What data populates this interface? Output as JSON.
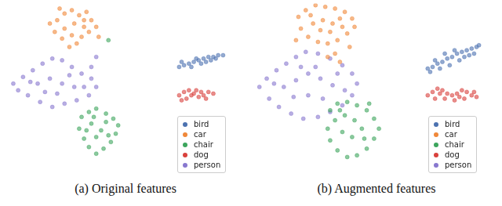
{
  "chart_data": [
    {
      "type": "scatter",
      "caption": "(a) Original features",
      "xlim": [
        0,
        100
      ],
      "ylim": [
        0,
        100
      ],
      "tick_labels": false,
      "grid": false,
      "legend": "lower right",
      "series": [
        {
          "name": "bird",
          "color": "#4c72b0",
          "marker": "circle",
          "points": [
            [
              72,
              62
            ],
            [
              74,
              63
            ],
            [
              76,
              64
            ],
            [
              78,
              65
            ],
            [
              80,
              66
            ],
            [
              82,
              67
            ],
            [
              84,
              68
            ],
            [
              86,
              68
            ],
            [
              88,
              69
            ],
            [
              90,
              69
            ],
            [
              77,
              62
            ],
            [
              81,
              64
            ],
            [
              85,
              66
            ],
            [
              79,
              67
            ],
            [
              83,
              65
            ],
            [
              87,
              67
            ],
            [
              73,
              65
            ]
          ]
        },
        {
          "name": "car",
          "color": "#f0883a",
          "marker": "circle",
          "points": [
            [
              22,
              90
            ],
            [
              25,
              94
            ],
            [
              28,
              96
            ],
            [
              31,
              93
            ],
            [
              34,
              95
            ],
            [
              36,
              90
            ],
            [
              33,
              86
            ],
            [
              29,
              88
            ],
            [
              25,
              85
            ],
            [
              21,
              83
            ],
            [
              24,
              79
            ],
            [
              28,
              81
            ],
            [
              32,
              80
            ],
            [
              35,
              83
            ],
            [
              38,
              86
            ],
            [
              30,
              76
            ],
            [
              27,
              74
            ],
            [
              19,
              88
            ],
            [
              23,
              97
            ],
            [
              33,
              90
            ],
            [
              39,
              80
            ]
          ]
        },
        {
          "name": "chair",
          "color": "#3da55d",
          "marker": "circle",
          "points": [
            [
              32,
              32
            ],
            [
              35,
              35
            ],
            [
              38,
              37
            ],
            [
              42,
              34
            ],
            [
              45,
              31
            ],
            [
              47,
              27
            ],
            [
              46,
              22
            ],
            [
              44,
              17
            ],
            [
              41,
              13
            ],
            [
              38,
              10
            ],
            [
              35,
              14
            ],
            [
              33,
              19
            ],
            [
              31,
              25
            ],
            [
              36,
              28
            ],
            [
              40,
              24
            ],
            [
              42,
              29
            ],
            [
              38,
              20
            ],
            [
              43,
              21
            ],
            [
              37,
              32
            ],
            [
              34,
              24
            ],
            [
              43,
              78
            ]
          ]
        },
        {
          "name": "dog",
          "color": "#d9413d",
          "marker": "circle",
          "points": [
            [
              72,
              45
            ],
            [
              74,
              47
            ],
            [
              76,
              48
            ],
            [
              78,
              46
            ],
            [
              80,
              44
            ],
            [
              82,
              45
            ],
            [
              84,
              47
            ],
            [
              86,
              46
            ],
            [
              75,
              43
            ],
            [
              79,
              48
            ],
            [
              83,
              43
            ],
            [
              77,
              45
            ],
            [
              81,
              47
            ],
            [
              73,
              42
            ]
          ]
        },
        {
          "name": "person",
          "color": "#8878cf",
          "marker": "circle",
          "points": [
            [
              4,
              52
            ],
            [
              8,
              56
            ],
            [
              12,
              60
            ],
            [
              16,
              64
            ],
            [
              20,
              67
            ],
            [
              24,
              66
            ],
            [
              28,
              62
            ],
            [
              32,
              58
            ],
            [
              36,
              55
            ],
            [
              38,
              50
            ],
            [
              35,
              45
            ],
            [
              30,
              42
            ],
            [
              25,
              40
            ],
            [
              20,
              38
            ],
            [
              15,
              41
            ],
            [
              10,
              45
            ],
            [
              6,
              48
            ],
            [
              14,
              52
            ],
            [
              19,
              55
            ],
            [
              24,
              52
            ],
            [
              29,
              50
            ],
            [
              33,
              50
            ],
            [
              22,
              46
            ],
            [
              17,
              47
            ],
            [
              27,
              57
            ],
            [
              11,
              53
            ],
            [
              38,
              68
            ],
            [
              36,
              62
            ]
          ]
        }
      ]
    },
    {
      "type": "scatter",
      "caption": "(b) Augmented features",
      "xlim": [
        0,
        100
      ],
      "ylim": [
        0,
        100
      ],
      "tick_labels": false,
      "grid": false,
      "legend": "lower right",
      "series": [
        {
          "name": "bird",
          "color": "#4c72b0",
          "marker": "circle",
          "points": [
            [
              71,
              61
            ],
            [
              73,
              62
            ],
            [
              75,
              64
            ],
            [
              77,
              65
            ],
            [
              79,
              67
            ],
            [
              81,
              68
            ],
            [
              83,
              70
            ],
            [
              85,
              71
            ],
            [
              87,
              72
            ],
            [
              89,
              73
            ],
            [
              91,
              74
            ],
            [
              76,
              61
            ],
            [
              80,
              63
            ],
            [
              84,
              66
            ],
            [
              88,
              69
            ],
            [
              78,
              70
            ],
            [
              82,
              72
            ],
            [
              86,
              68
            ],
            [
              90,
              70
            ],
            [
              74,
              66
            ],
            [
              72,
              59
            ],
            [
              92,
              75
            ]
          ]
        },
        {
          "name": "car",
          "color": "#f0883a",
          "marker": "circle",
          "points": [
            [
              18,
              92
            ],
            [
              21,
              96
            ],
            [
              25,
              99
            ],
            [
              29,
              98
            ],
            [
              33,
              97
            ],
            [
              37,
              95
            ],
            [
              40,
              91
            ],
            [
              41,
              86
            ],
            [
              38,
              82
            ],
            [
              34,
              78
            ],
            [
              30,
              76
            ],
            [
              26,
              77
            ],
            [
              22,
              80
            ],
            [
              19,
              85
            ],
            [
              24,
              88
            ],
            [
              28,
              90
            ],
            [
              32,
              88
            ],
            [
              36,
              86
            ],
            [
              27,
              84
            ],
            [
              31,
              83
            ],
            [
              23,
              93
            ],
            [
              35,
              91
            ],
            [
              33,
              70
            ],
            [
              35,
              65
            ],
            [
              30,
              68
            ],
            [
              39,
              74
            ],
            [
              17,
              78
            ]
          ]
        },
        {
          "name": "chair",
          "color": "#3da55d",
          "marker": "circle",
          "points": [
            [
              31,
              36
            ],
            [
              34,
              40
            ],
            [
              38,
              41
            ],
            [
              42,
              39
            ],
            [
              46,
              36
            ],
            [
              49,
              31
            ],
            [
              51,
              25
            ],
            [
              49,
              19
            ],
            [
              46,
              13
            ],
            [
              42,
              9
            ],
            [
              38,
              8
            ],
            [
              34,
              12
            ],
            [
              31,
              18
            ],
            [
              30,
              25
            ],
            [
              33,
              30
            ],
            [
              37,
              33
            ],
            [
              41,
              30
            ],
            [
              44,
              25
            ],
            [
              40,
              20
            ],
            [
              36,
              23
            ],
            [
              45,
              19
            ],
            [
              35,
              36
            ],
            [
              47,
              40
            ]
          ]
        },
        {
          "name": "dog",
          "color": "#d9413d",
          "marker": "circle",
          "points": [
            [
              71,
              45
            ],
            [
              73,
              47
            ],
            [
              75,
              49
            ],
            [
              77,
              48
            ],
            [
              79,
              46
            ],
            [
              81,
              45
            ],
            [
              83,
              46
            ],
            [
              85,
              48
            ],
            [
              87,
              47
            ],
            [
              89,
              45
            ],
            [
              91,
              44
            ],
            [
              74,
              43
            ],
            [
              78,
              43
            ],
            [
              82,
              42
            ],
            [
              86,
              43
            ],
            [
              90,
              47
            ],
            [
              76,
              46
            ],
            [
              84,
              44
            ]
          ]
        },
        {
          "name": "person",
          "color": "#8878cf",
          "marker": "circle",
          "points": [
            [
              2,
              50
            ],
            [
              5,
              55
            ],
            [
              9,
              60
            ],
            [
              13,
              64
            ],
            [
              17,
              68
            ],
            [
              21,
              71
            ],
            [
              26,
              70
            ],
            [
              31,
              67
            ],
            [
              36,
              63
            ],
            [
              40,
              58
            ],
            [
              42,
              52
            ],
            [
              40,
              45
            ],
            [
              36,
              39
            ],
            [
              31,
              35
            ],
            [
              26,
              32
            ],
            [
              20,
              31
            ],
            [
              15,
              34
            ],
            [
              10,
              38
            ],
            [
              6,
              43
            ],
            [
              12,
              50
            ],
            [
              17,
              54
            ],
            [
              22,
              58
            ],
            [
              27,
              55
            ],
            [
              32,
              51
            ],
            [
              37,
              48
            ],
            [
              22,
              45
            ],
            [
              16,
              44
            ],
            [
              28,
              43
            ],
            [
              8,
              52
            ],
            [
              34,
              58
            ],
            [
              25,
              62
            ],
            [
              19,
              62
            ]
          ]
        }
      ]
    }
  ]
}
